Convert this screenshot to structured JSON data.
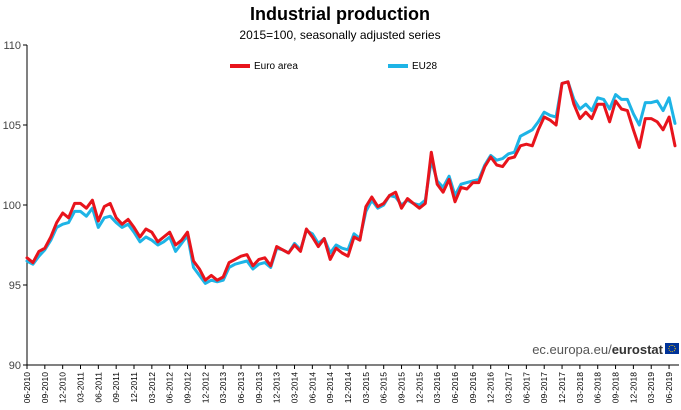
{
  "chart_data": {
    "type": "line",
    "title": "Industrial production",
    "subtitle": "2015=100, seasonally adjusted series",
    "xlabel": "",
    "ylabel": "",
    "ylim": [
      90,
      110
    ],
    "yticks": [
      90,
      95,
      100,
      105,
      110
    ],
    "grid": false,
    "legend_position": "top",
    "x_tick_labels": [
      "06-2010",
      "09-2010",
      "12-2010",
      "03-2011",
      "06-2011",
      "09-2011",
      "12-2011",
      "03-2012",
      "06-2012",
      "09-2012",
      "12-2012",
      "03-2013",
      "06-2013",
      "09-2013",
      "12-2013",
      "03-2014",
      "06-2014",
      "09-2014",
      "12-2014",
      "03-2015",
      "06-2015",
      "09-2015",
      "12-2015",
      "03-2016",
      "06-2016",
      "09-2016",
      "12-2016",
      "03-2017",
      "06-2017",
      "09-2017",
      "12-2017",
      "03-2018",
      "06-2018",
      "09-2018",
      "12-2018",
      "03-2019",
      "06-2019"
    ],
    "series": [
      {
        "name": "Euro area",
        "color": "#e8141c",
        "values": [
          96.7,
          96.4,
          97.1,
          97.3,
          98.0,
          98.9,
          99.5,
          99.2,
          100.1,
          100.1,
          99.8,
          100.3,
          99.0,
          99.9,
          100.1,
          99.2,
          98.8,
          99.1,
          98.6,
          98.0,
          98.5,
          98.3,
          97.7,
          98.0,
          98.3,
          97.5,
          97.8,
          98.3,
          96.5,
          96.0,
          95.3,
          95.6,
          95.3,
          95.5,
          96.4,
          96.6,
          96.8,
          96.9,
          96.2,
          96.6,
          96.7,
          96.2,
          97.4,
          97.2,
          97.0,
          97.5,
          97.1,
          98.5,
          98.0,
          97.4,
          97.9,
          96.6,
          97.3,
          97.0,
          96.8,
          98.0,
          97.8,
          99.9,
          100.5,
          99.9,
          100.1,
          100.6,
          100.8,
          99.8,
          100.4,
          100.1,
          99.8,
          100.1,
          103.3,
          101.3,
          100.8,
          101.6,
          100.2,
          101.1,
          101.0,
          101.4,
          101.4,
          102.4,
          103.0,
          102.5,
          102.4,
          102.9,
          103.0,
          103.7,
          103.8,
          103.7,
          104.7,
          105.5,
          105.3,
          105.0,
          107.6,
          107.7,
          106.3,
          105.4,
          105.8,
          105.4,
          106.3,
          106.3,
          105.2,
          106.5,
          106.0,
          105.9,
          104.7,
          103.6,
          105.4,
          105.4,
          105.2,
          104.7,
          105.5,
          103.7
        ]
      },
      {
        "name": "EU28",
        "color": "#1eb4e6",
        "values": [
          96.5,
          96.3,
          96.8,
          97.2,
          97.8,
          98.6,
          98.8,
          98.9,
          99.6,
          99.6,
          99.3,
          99.8,
          98.6,
          99.2,
          99.3,
          98.9,
          98.6,
          98.8,
          98.3,
          97.7,
          98.0,
          97.8,
          97.5,
          97.7,
          98.0,
          97.1,
          97.6,
          98.1,
          96.1,
          95.6,
          95.1,
          95.3,
          95.2,
          95.3,
          96.1,
          96.3,
          96.4,
          96.5,
          96.0,
          96.3,
          96.4,
          96.1,
          97.3,
          97.2,
          97.0,
          97.6,
          97.2,
          98.4,
          98.2,
          97.6,
          97.9,
          97.0,
          97.5,
          97.3,
          97.2,
          98.2,
          97.9,
          99.6,
          100.3,
          99.8,
          100.0,
          100.6,
          100.5,
          100.0,
          100.3,
          100.1,
          100.0,
          100.3,
          102.8,
          101.5,
          101.1,
          101.8,
          100.6,
          101.3,
          101.4,
          101.5,
          101.6,
          102.5,
          103.1,
          102.8,
          102.9,
          103.2,
          103.3,
          104.3,
          104.5,
          104.7,
          105.2,
          105.8,
          105.6,
          105.5,
          107.6,
          107.7,
          106.6,
          106.0,
          106.3,
          105.9,
          106.7,
          106.6,
          106.0,
          106.9,
          106.6,
          106.6,
          105.7,
          105.0,
          106.4,
          106.4,
          106.5,
          105.9,
          106.7,
          105.1
        ]
      }
    ]
  },
  "source": {
    "prefix": "ec.europa.eu/",
    "brand": "eurostat"
  }
}
